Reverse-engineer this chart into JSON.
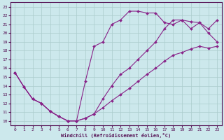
{
  "xlabel": "Windchill (Refroidissement éolien,°C)",
  "background_color": "#cce8ec",
  "grid_color": "#aacccc",
  "line_color": "#882288",
  "xlim": [
    -0.5,
    23.5
  ],
  "ylim": [
    9.5,
    23.5
  ],
  "xticks": [
    0,
    1,
    2,
    3,
    4,
    5,
    6,
    7,
    8,
    9,
    10,
    11,
    12,
    13,
    14,
    15,
    16,
    17,
    18,
    19,
    20,
    21,
    22,
    23
  ],
  "yticks": [
    10,
    11,
    12,
    13,
    14,
    15,
    16,
    17,
    18,
    19,
    20,
    21,
    22,
    23
  ],
  "line1_x": [
    0,
    1,
    2,
    3,
    4,
    5,
    6,
    7,
    8,
    9,
    10,
    11,
    12,
    13,
    14,
    15,
    16,
    17,
    18,
    19,
    20,
    21,
    22,
    23
  ],
  "line1_y": [
    15.5,
    13.9,
    12.5,
    12.0,
    11.1,
    10.5,
    10.0,
    10.0,
    10.3,
    10.8,
    11.5,
    12.3,
    13.0,
    13.7,
    14.5,
    15.3,
    16.0,
    16.8,
    17.5,
    17.8,
    18.2,
    18.5,
    18.3,
    18.5
  ],
  "line2_x": [
    0,
    1,
    2,
    3,
    4,
    5,
    6,
    7,
    8,
    9,
    10,
    11,
    12,
    13,
    14,
    15,
    16,
    17,
    18,
    19,
    20,
    21,
    22,
    23
  ],
  "line2_y": [
    15.5,
    13.9,
    12.5,
    12.0,
    11.1,
    10.5,
    10.0,
    10.0,
    14.5,
    18.5,
    19.0,
    21.0,
    21.5,
    22.5,
    22.5,
    22.3,
    22.3,
    21.2,
    21.0,
    21.5,
    20.5,
    21.2,
    20.0,
    19.0
  ],
  "line3_x": [
    0,
    1,
    2,
    3,
    4,
    5,
    6,
    7,
    8,
    9,
    10,
    11,
    12,
    13,
    14,
    15,
    16,
    17,
    18,
    19,
    20,
    21,
    22,
    23
  ],
  "line3_y": [
    15.5,
    13.9,
    12.5,
    12.0,
    11.1,
    10.5,
    10.0,
    10.0,
    10.3,
    10.8,
    12.5,
    14.0,
    15.3,
    16.0,
    17.0,
    18.0,
    19.0,
    20.5,
    21.5,
    21.5,
    21.3,
    21.2,
    20.5,
    21.5
  ]
}
